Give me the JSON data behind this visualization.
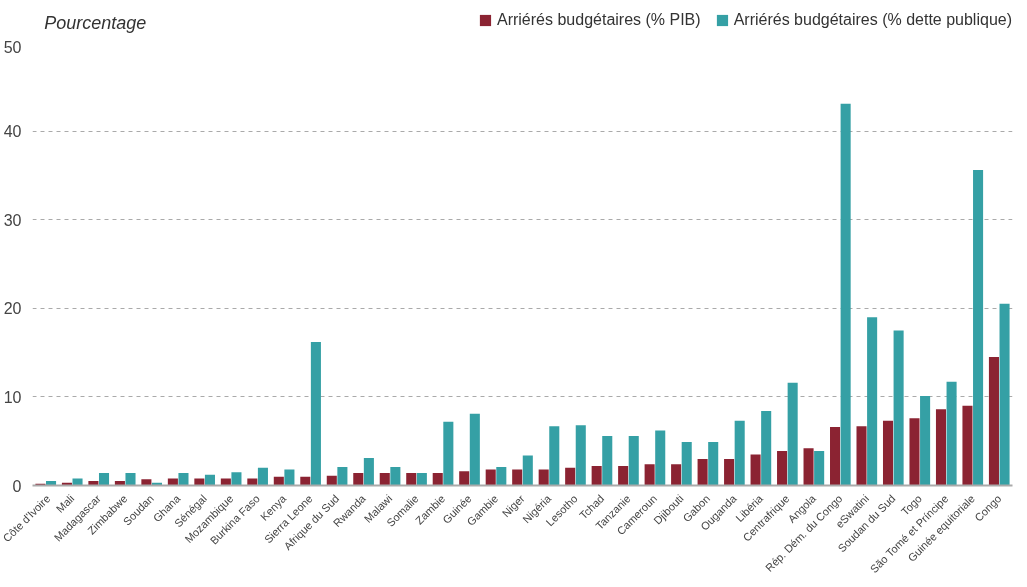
{
  "chart_data": {
    "type": "bar",
    "ylabel": "Pourcentage",
    "categories": [
      "Côte d'Ivoire",
      "Mali",
      "Madagascar",
      "Zimbabwe",
      "Soudan",
      "Ghana",
      "Sénégal",
      "Mozambique",
      "Burkina Faso",
      "Kenya",
      "Sierra Leone",
      "Afrique du Sud",
      "Rwanda",
      "Malawi",
      "Somalie",
      "Zambie",
      "Guinée",
      "Gambie",
      "Niger",
      "Nigéria",
      "Lesotho",
      "Tchad",
      "Tanzanie",
      "Cameroun",
      "Djibouti",
      "Gabon",
      "Ouganda",
      "Libéria",
      "Centrafrique",
      "Angola",
      "Rép. Dém. du Congo",
      "eSwatini",
      "Soudan du Sud",
      "Togo",
      "São Tomé et Príncipe",
      "Guinée equitoriale",
      "Congo"
    ],
    "series": [
      {
        "name": "Arriérés budgétaires (% PIB)",
        "color": "#8b2332",
        "values": [
          0.2,
          0.3,
          0.5,
          0.5,
          0.7,
          0.8,
          0.8,
          0.8,
          0.8,
          1.0,
          1.0,
          1.1,
          1.4,
          1.4,
          1.4,
          1.4,
          1.6,
          1.8,
          1.8,
          1.8,
          2.0,
          2.2,
          2.2,
          2.4,
          2.4,
          3.0,
          3.0,
          3.5,
          3.9,
          4.2,
          6.6,
          6.7,
          7.3,
          7.6,
          8.6,
          9.0,
          14.5
        ]
      },
      {
        "name": "Arriérés budgétaires (% dette publique)",
        "color": "#35a0a5",
        "values": [
          0.5,
          0.8,
          1.4,
          1.4,
          0.3,
          1.4,
          1.2,
          1.5,
          2.0,
          1.8,
          16.2,
          2.1,
          3.1,
          2.1,
          1.4,
          7.2,
          8.1,
          2.1,
          3.4,
          6.7,
          6.8,
          5.6,
          5.6,
          6.2,
          4.9,
          4.9,
          7.3,
          8.4,
          11.6,
          3.9,
          43.1,
          19.0,
          17.5,
          10.1,
          11.7,
          35.6,
          20.5
        ]
      }
    ],
    "ylim": [
      0,
      50
    ],
    "yticks": [
      0,
      10,
      20,
      30,
      40,
      50
    ],
    "grid": "y",
    "legend": "top right"
  }
}
